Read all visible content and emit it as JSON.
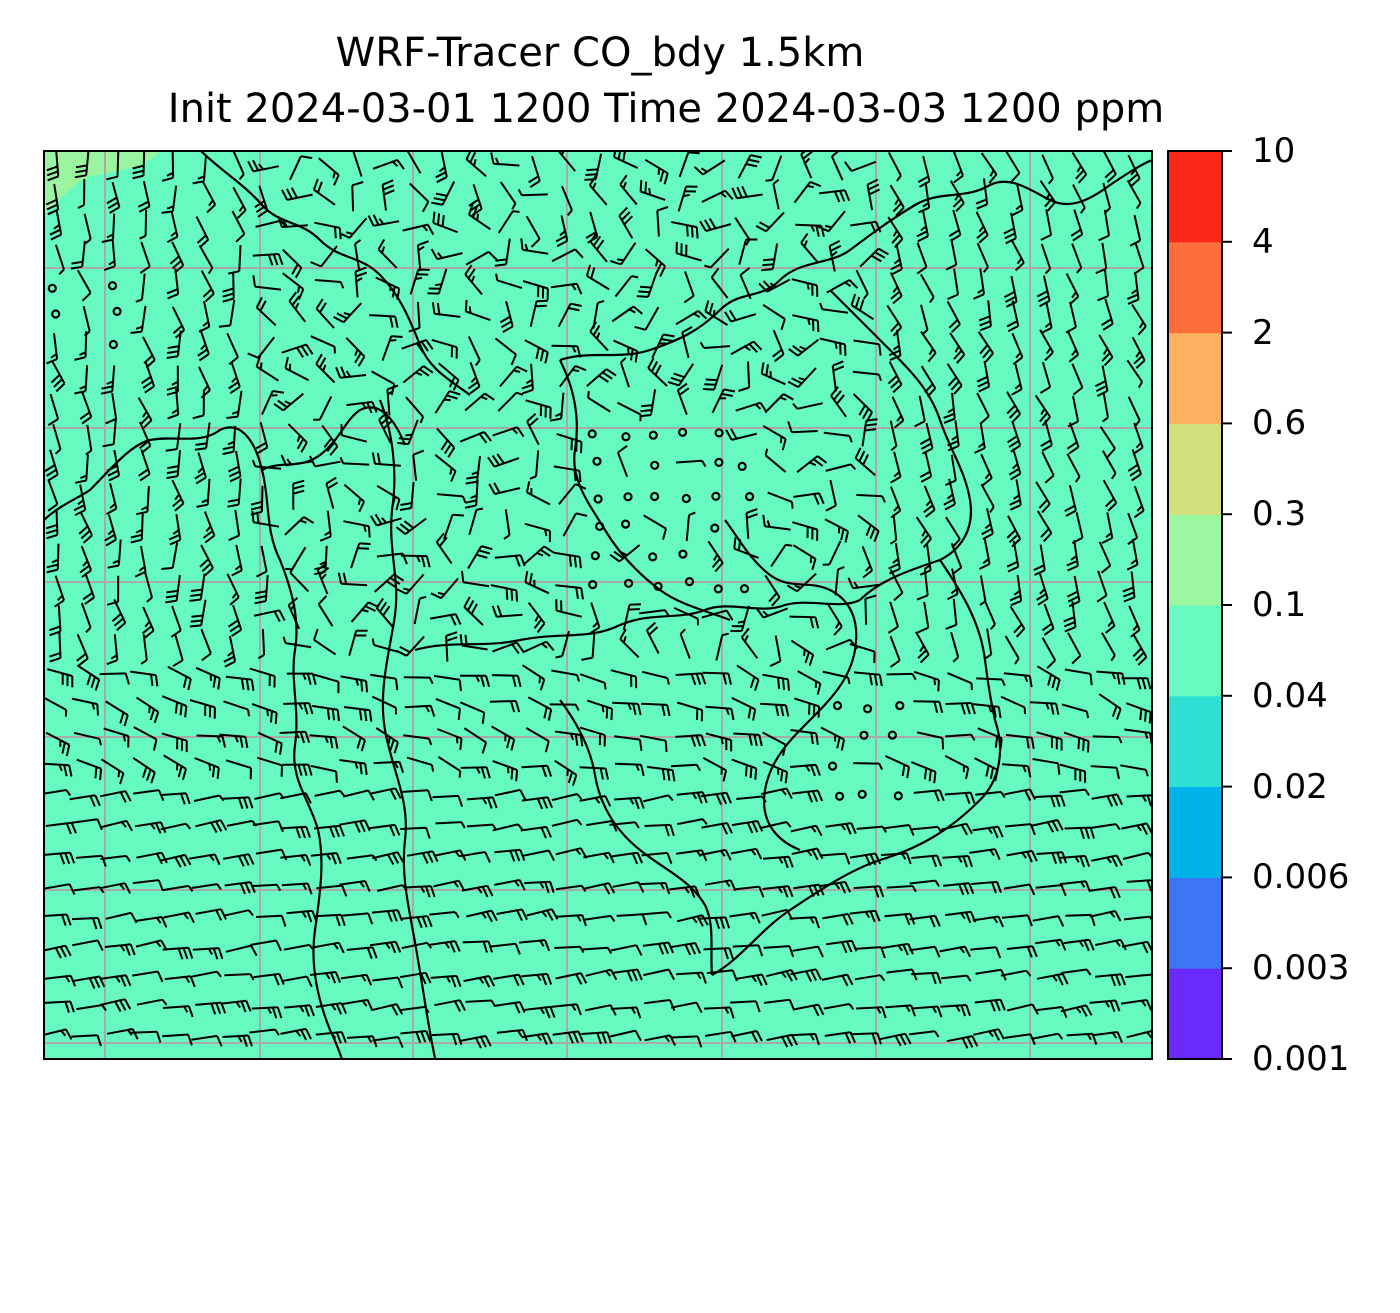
{
  "title": {
    "line1": "WRF-Tracer CO_bdy 1.5km",
    "line2": "Init 2024-03-01 1200 Time 2024-03-03 1200 ppm"
  },
  "map": {
    "field_color": "#66f9c0",
    "corner_patch_color": "#9bf5a0",
    "gridline_color": "#a9a9a9",
    "coastline_color": "#000000",
    "barb_color": "#000000",
    "gridlines_lon_count": 7,
    "gridlines_lat_count": 7
  },
  "colorbar": {
    "levels": [
      "0.001",
      "0.003",
      "0.006",
      "0.02",
      "0.04",
      "0.1",
      "0.3",
      "0.6",
      "2",
      "4",
      "10"
    ],
    "colors": [
      "#6a2bfa",
      "#3b74f5",
      "#00b2ea",
      "#2edfd3",
      "#66f9c0",
      "#9bf7a0",
      "#d4df7c",
      "#fdb060",
      "#fd6e3a",
      "#fb281a"
    ]
  }
}
